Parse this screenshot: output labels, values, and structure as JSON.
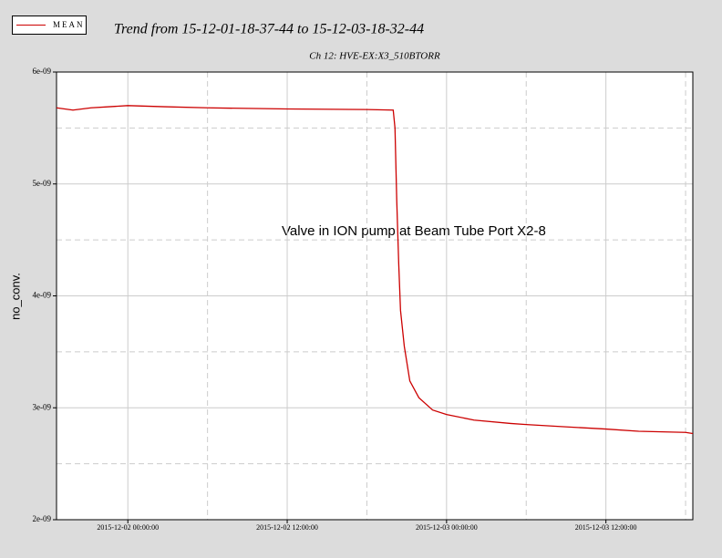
{
  "chart_data": {
    "type": "line",
    "title": "Trend from 15-12-01-18-37-44 to 15-12-03-18-32-44",
    "subtitle": "Ch 12: HVE-EX:X3_510BTORR",
    "ylabel": "no_conv.",
    "annotation": "Valve in ION pump at Beam Tube Port X2-8",
    "legend": "top-left",
    "grid": true,
    "x": [
      "2015-12-01 18:37:44",
      "2015-12-01 19:52:00",
      "2015-12-01 21:14:00",
      "2015-12-01 22:36:00",
      "2015-12-02 00:00:00",
      "2015-12-02 02:45:00",
      "2015-12-02 06:00:00",
      "2015-12-02 12:00:00",
      "2015-12-02 18:00:00",
      "2015-12-02 19:59:00",
      "2015-12-02 20:07:00",
      "2015-12-02 20:15:00",
      "2015-12-02 20:24:00",
      "2015-12-02 20:32:00",
      "2015-12-02 20:49:00",
      "2015-12-02 21:14:00",
      "2015-12-02 21:55:00",
      "2015-12-02 22:57:00",
      "2015-12-03 00:00:00",
      "2015-12-03 02:04:00",
      "2015-12-03 04:49:00",
      "2015-12-03 06:00:00",
      "2015-12-03 08:57:00",
      "2015-12-03 12:00:00",
      "2015-12-03 14:28:00",
      "2015-12-03 18:00:00",
      "2015-12-03 18:32:44"
    ],
    "series": [
      {
        "name": "MEAN",
        "color": "#cc0000",
        "values": [
          5.68e-09,
          5.66e-09,
          5.68e-09,
          5.69e-09,
          5.7e-09,
          5.69e-09,
          5.68e-09,
          5.67e-09,
          5.665e-09,
          5.66e-09,
          5.5e-09,
          4.85e-09,
          4.28e-09,
          3.87e-09,
          3.55e-09,
          3.24e-09,
          3.09e-09,
          2.98e-09,
          2.94e-09,
          2.89e-09,
          2.86e-09,
          2.85e-09,
          2.83e-09,
          2.81e-09,
          2.79e-09,
          2.78e-09,
          2.77e-09
        ]
      }
    ],
    "xlim": [
      "2015-12-01 18:37:44",
      "2015-12-03 18:32:44"
    ],
    "xticks": [
      "2015-12-02 00:00:00",
      "2015-12-02 12:00:00",
      "2015-12-03 00:00:00",
      "2015-12-03 12:00:00"
    ],
    "xminorticks": [
      "2015-12-02 06:00:00",
      "2015-12-02 18:00:00",
      "2015-12-03 06:00:00",
      "2015-12-03 18:00:00"
    ],
    "ylim": [
      2e-09,
      6e-09
    ],
    "yticks": [
      {
        "value": 2e-09,
        "label": "2e-09"
      },
      {
        "value": 3e-09,
        "label": "3e-09"
      },
      {
        "value": 4e-09,
        "label": "4e-09"
      },
      {
        "value": 5e-09,
        "label": "5e-09"
      },
      {
        "value": 6e-09,
        "label": "6e-09"
      }
    ],
    "yminorticks": [
      2.5e-09,
      3.5e-09,
      4.5e-09,
      5.5e-09
    ]
  }
}
